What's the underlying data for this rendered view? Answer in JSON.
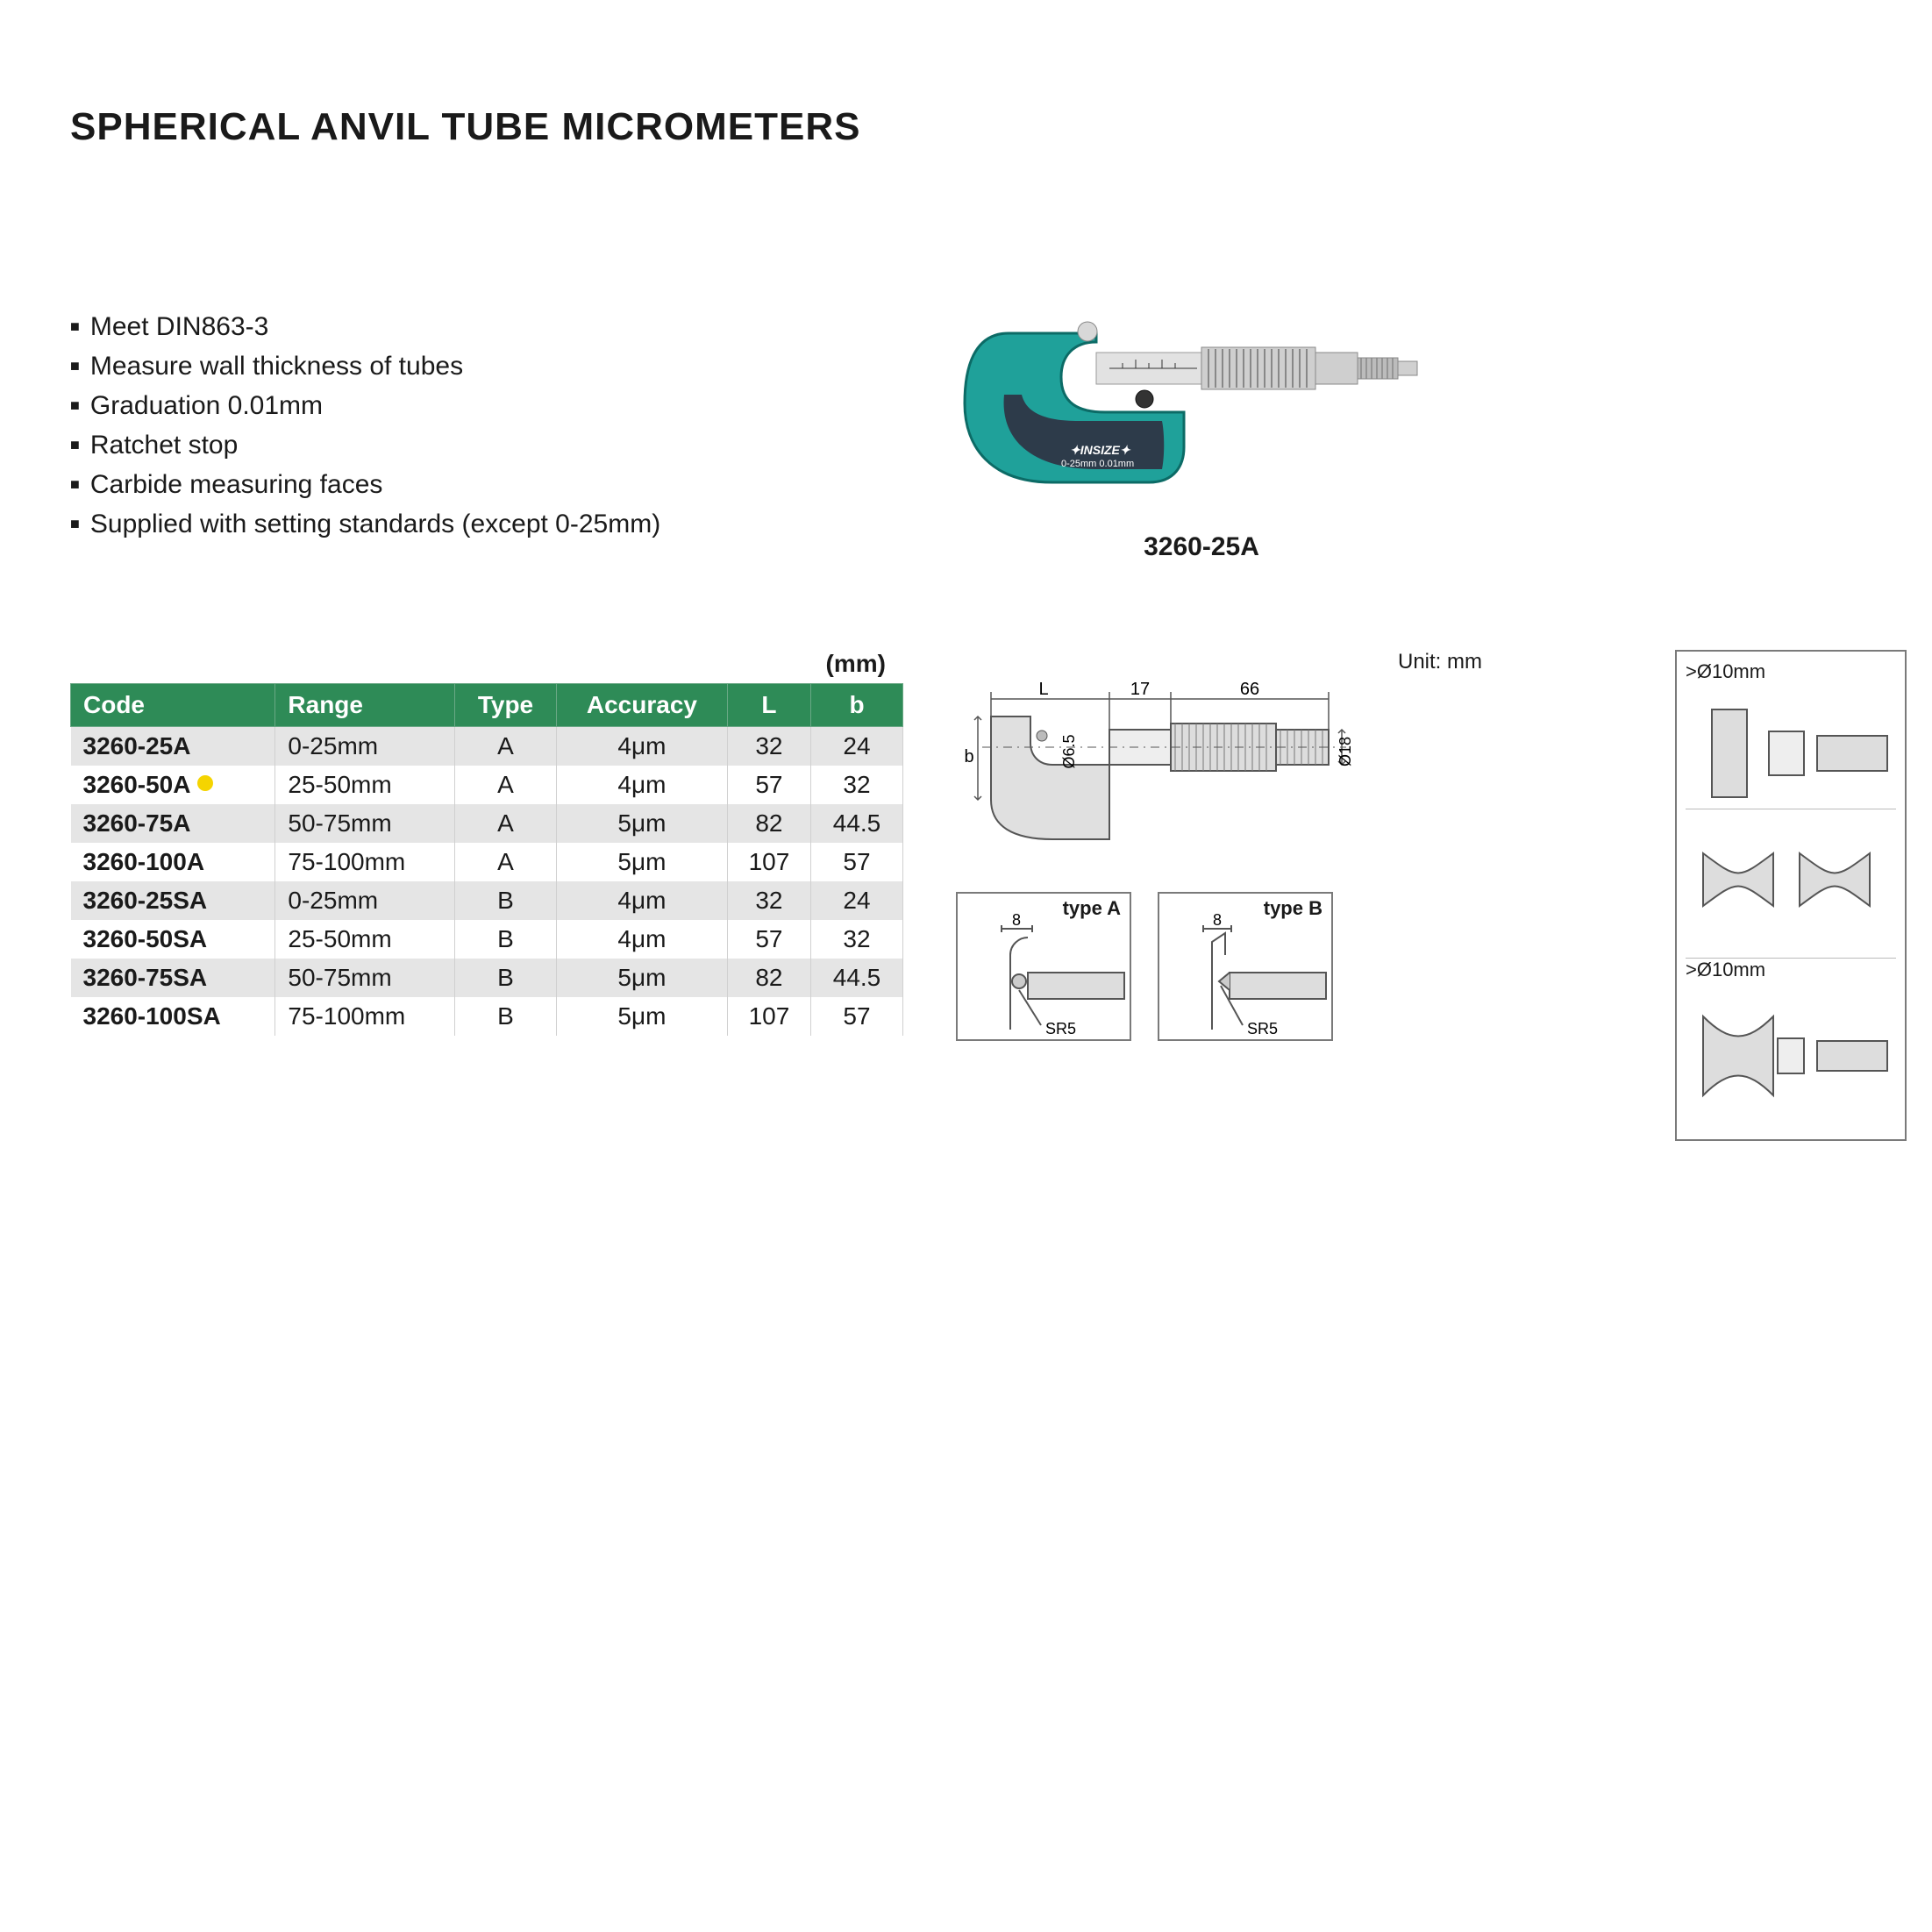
{
  "title": "SPHERICAL ANVIL TUBE MICROMETERS",
  "features": [
    "Meet DIN863-3",
    "Measure wall thickness of tubes",
    "Graduation 0.01mm",
    "Ratchet stop",
    "Carbide measuring faces",
    "Supplied with setting standards (except 0-25mm)"
  ],
  "product_caption": "3260-25A",
  "table": {
    "unit_label": "(mm)",
    "header_bg": "#2e8b57",
    "header_fg": "#ffffff",
    "row_alt_bg": "#e5e5e5",
    "row_bg": "#ffffff",
    "highlight_dot_color": "#f5d400",
    "columns": [
      {
        "label": "Code",
        "align": "left",
        "key": "code"
      },
      {
        "label": "Range",
        "align": "left",
        "key": "range"
      },
      {
        "label": "Type",
        "align": "center",
        "key": "type"
      },
      {
        "label": "Accuracy",
        "align": "center",
        "key": "accuracy"
      },
      {
        "label": "L",
        "align": "center",
        "key": "L"
      },
      {
        "label": "b",
        "align": "center",
        "key": "b"
      }
    ],
    "rows": [
      {
        "code": "3260-25A",
        "range": "0-25mm",
        "type": "A",
        "accuracy": "4μm",
        "L": "32",
        "b": "24",
        "highlight": false
      },
      {
        "code": "3260-50A",
        "range": "25-50mm",
        "type": "A",
        "accuracy": "4μm",
        "L": "57",
        "b": "32",
        "highlight": true
      },
      {
        "code": "3260-75A",
        "range": "50-75mm",
        "type": "A",
        "accuracy": "5μm",
        "L": "82",
        "b": "44.5",
        "highlight": false
      },
      {
        "code": "3260-100A",
        "range": "75-100mm",
        "type": "A",
        "accuracy": "5μm",
        "L": "107",
        "b": "57",
        "highlight": false
      },
      {
        "code": "3260-25SA",
        "range": "0-25mm",
        "type": "B",
        "accuracy": "4μm",
        "L": "32",
        "b": "24",
        "highlight": false
      },
      {
        "code": "3260-50SA",
        "range": "25-50mm",
        "type": "B",
        "accuracy": "4μm",
        "L": "57",
        "b": "32",
        "highlight": false
      },
      {
        "code": "3260-75SA",
        "range": "50-75mm",
        "type": "B",
        "accuracy": "5μm",
        "L": "82",
        "b": "44.5",
        "highlight": false
      },
      {
        "code": "3260-100SA",
        "range": "75-100mm",
        "type": "B",
        "accuracy": "5μm",
        "L": "107",
        "b": "57",
        "highlight": false
      }
    ]
  },
  "diagrams": {
    "unit_note": "Unit: mm",
    "main": {
      "L": "L",
      "d17": "17",
      "d66": "66",
      "d18": "Ø18",
      "d65": "Ø6.5",
      "b": "b"
    },
    "typeA": {
      "label": "type A",
      "d8": "8",
      "sr": "SR5"
    },
    "typeB": {
      "label": "type B",
      "d8": "8",
      "sr": "SR5"
    },
    "side": {
      "top": ">Ø10mm",
      "bottom": ">Ø10mm"
    }
  },
  "colors": {
    "micrometer_frame": "#1fa19a",
    "micrometer_grip": "#2d3b4a",
    "metal": "#c8c8c8",
    "metal_dark": "#9a9a9a",
    "diagram_line": "#555555"
  }
}
